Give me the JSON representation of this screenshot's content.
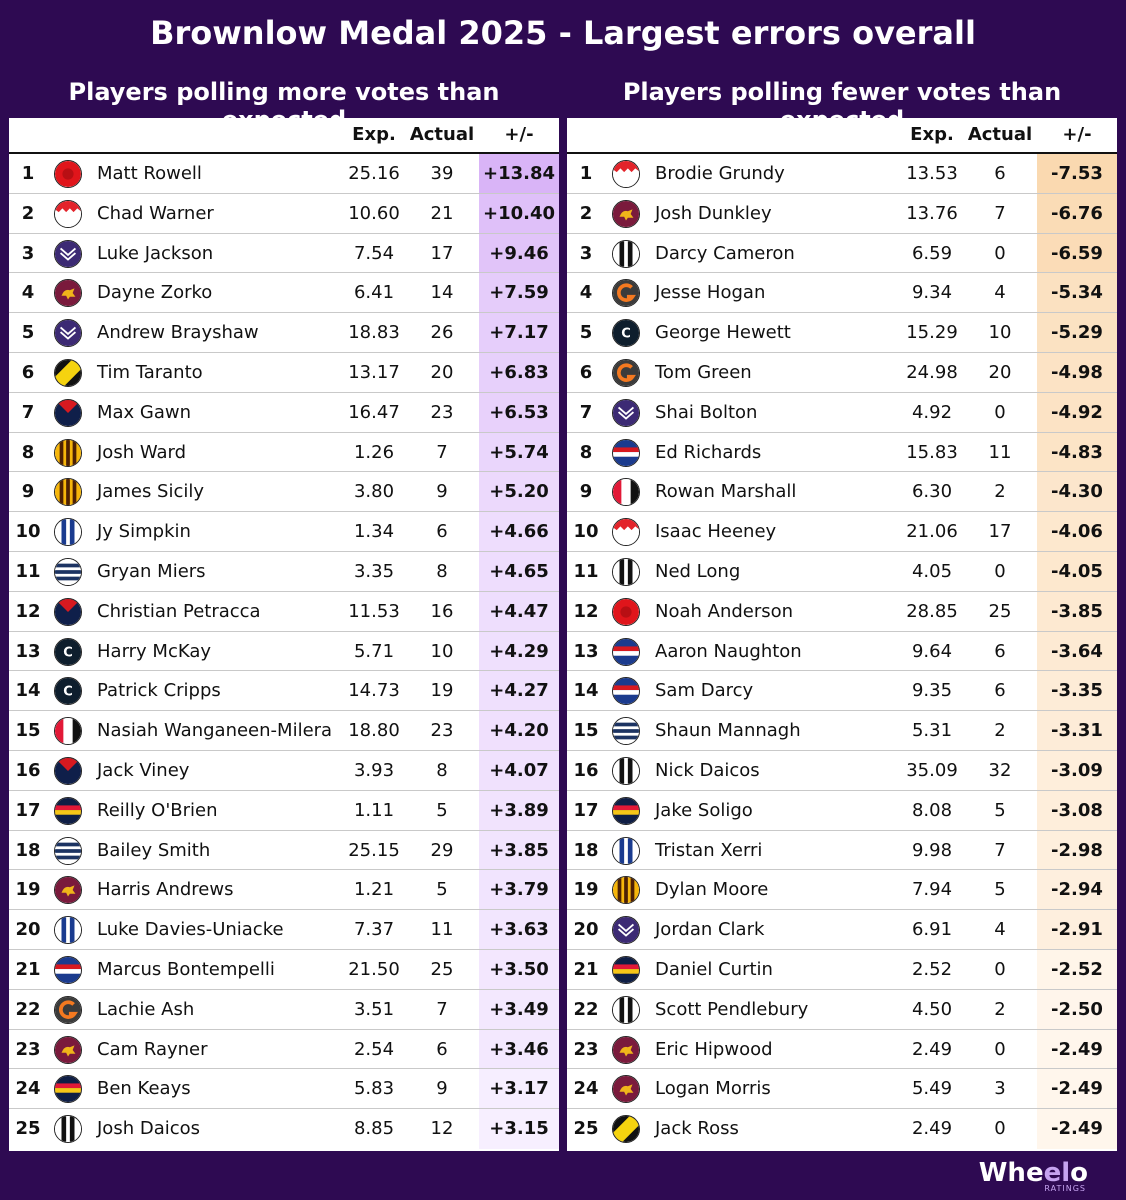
{
  "title": "Brownlow Medal 2025 - Largest errors overall",
  "left": {
    "subtitle": "Players polling more votes than expected",
    "headers": {
      "exp": "Exp.",
      "actual": "Actual",
      "diff": "+/-"
    },
    "rows": [
      {
        "rank": "1",
        "name": "Matt Rowell",
        "exp": "25.16",
        "actual": "39",
        "diff": "+13.84",
        "logo": "suns-icon"
      },
      {
        "rank": "2",
        "name": "Chad Warner",
        "exp": "10.60",
        "actual": "21",
        "diff": "+10.40",
        "logo": "swans-icon"
      },
      {
        "rank": "3",
        "name": "Luke Jackson",
        "exp": "7.54",
        "actual": "17",
        "diff": "+9.46",
        "logo": "dockers-icon"
      },
      {
        "rank": "4",
        "name": "Dayne Zorko",
        "exp": "6.41",
        "actual": "14",
        "diff": "+7.59",
        "logo": "lions-icon"
      },
      {
        "rank": "5",
        "name": "Andrew Brayshaw",
        "exp": "18.83",
        "actual": "26",
        "diff": "+7.17",
        "logo": "dockers-icon"
      },
      {
        "rank": "6",
        "name": "Tim Taranto",
        "exp": "13.17",
        "actual": "20",
        "diff": "+6.83",
        "logo": "tigers-icon"
      },
      {
        "rank": "7",
        "name": "Max Gawn",
        "exp": "16.47",
        "actual": "23",
        "diff": "+6.53",
        "logo": "demons-icon"
      },
      {
        "rank": "8",
        "name": "Josh Ward",
        "exp": "1.26",
        "actual": "7",
        "diff": "+5.74",
        "logo": "hawks-icon"
      },
      {
        "rank": "9",
        "name": "James Sicily",
        "exp": "3.80",
        "actual": "9",
        "diff": "+5.20",
        "logo": "hawks-icon"
      },
      {
        "rank": "10",
        "name": "Jy Simpkin",
        "exp": "1.34",
        "actual": "6",
        "diff": "+4.66",
        "logo": "kangaroos-icon"
      },
      {
        "rank": "11",
        "name": "Gryan Miers",
        "exp": "3.35",
        "actual": "8",
        "diff": "+4.65",
        "logo": "cats-icon"
      },
      {
        "rank": "12",
        "name": "Christian Petracca",
        "exp": "11.53",
        "actual": "16",
        "diff": "+4.47",
        "logo": "demons-icon"
      },
      {
        "rank": "13",
        "name": "Harry McKay",
        "exp": "5.71",
        "actual": "10",
        "diff": "+4.29",
        "logo": "blues-icon"
      },
      {
        "rank": "14",
        "name": "Patrick Cripps",
        "exp": "14.73",
        "actual": "19",
        "diff": "+4.27",
        "logo": "blues-icon"
      },
      {
        "rank": "15",
        "name": "Nasiah Wanganeen-Milera",
        "exp": "18.80",
        "actual": "23",
        "diff": "+4.20",
        "logo": "saints-icon"
      },
      {
        "rank": "16",
        "name": "Jack Viney",
        "exp": "3.93",
        "actual": "8",
        "diff": "+4.07",
        "logo": "demons-icon"
      },
      {
        "rank": "17",
        "name": "Reilly O'Brien",
        "exp": "1.11",
        "actual": "5",
        "diff": "+3.89",
        "logo": "crows-icon"
      },
      {
        "rank": "18",
        "name": "Bailey Smith",
        "exp": "25.15",
        "actual": "29",
        "diff": "+3.85",
        "logo": "cats-icon"
      },
      {
        "rank": "19",
        "name": "Harris Andrews",
        "exp": "1.21",
        "actual": "5",
        "diff": "+3.79",
        "logo": "lions-icon"
      },
      {
        "rank": "20",
        "name": "Luke Davies-Uniacke",
        "exp": "7.37",
        "actual": "11",
        "diff": "+3.63",
        "logo": "kangaroos-icon"
      },
      {
        "rank": "21",
        "name": "Marcus Bontempelli",
        "exp": "21.50",
        "actual": "25",
        "diff": "+3.50",
        "logo": "bulldogs-icon"
      },
      {
        "rank": "22",
        "name": "Lachie Ash",
        "exp": "3.51",
        "actual": "7",
        "diff": "+3.49",
        "logo": "giants-icon"
      },
      {
        "rank": "23",
        "name": "Cam Rayner",
        "exp": "2.54",
        "actual": "6",
        "diff": "+3.46",
        "logo": "lions-icon"
      },
      {
        "rank": "24",
        "name": "Ben Keays",
        "exp": "5.83",
        "actual": "9",
        "diff": "+3.17",
        "logo": "crows-icon"
      },
      {
        "rank": "25",
        "name": "Josh Daicos",
        "exp": "8.85",
        "actual": "12",
        "diff": "+3.15",
        "logo": "magpies-icon"
      }
    ]
  },
  "right": {
    "subtitle": "Players polling fewer votes than expected",
    "headers": {
      "exp": "Exp.",
      "actual": "Actual",
      "diff": "+/-"
    },
    "rows": [
      {
        "rank": "1",
        "name": "Brodie Grundy",
        "exp": "13.53",
        "actual": "6",
        "diff": "-7.53",
        "logo": "swans-icon"
      },
      {
        "rank": "2",
        "name": "Josh Dunkley",
        "exp": "13.76",
        "actual": "7",
        "diff": "-6.76",
        "logo": "lions-icon"
      },
      {
        "rank": "3",
        "name": "Darcy Cameron",
        "exp": "6.59",
        "actual": "0",
        "diff": "-6.59",
        "logo": "magpies-icon"
      },
      {
        "rank": "4",
        "name": "Jesse Hogan",
        "exp": "9.34",
        "actual": "4",
        "diff": "-5.34",
        "logo": "giants-icon"
      },
      {
        "rank": "5",
        "name": "George Hewett",
        "exp": "15.29",
        "actual": "10",
        "diff": "-5.29",
        "logo": "blues-icon"
      },
      {
        "rank": "6",
        "name": "Tom Green",
        "exp": "24.98",
        "actual": "20",
        "diff": "-4.98",
        "logo": "giants-icon"
      },
      {
        "rank": "7",
        "name": "Shai Bolton",
        "exp": "4.92",
        "actual": "0",
        "diff": "-4.92",
        "logo": "dockers-icon"
      },
      {
        "rank": "8",
        "name": "Ed Richards",
        "exp": "15.83",
        "actual": "11",
        "diff": "-4.83",
        "logo": "bulldogs-icon"
      },
      {
        "rank": "9",
        "name": "Rowan Marshall",
        "exp": "6.30",
        "actual": "2",
        "diff": "-4.30",
        "logo": "saints-icon"
      },
      {
        "rank": "10",
        "name": "Isaac Heeney",
        "exp": "21.06",
        "actual": "17",
        "diff": "-4.06",
        "logo": "swans-icon"
      },
      {
        "rank": "11",
        "name": "Ned Long",
        "exp": "4.05",
        "actual": "0",
        "diff": "-4.05",
        "logo": "magpies-icon"
      },
      {
        "rank": "12",
        "name": "Noah Anderson",
        "exp": "28.85",
        "actual": "25",
        "diff": "-3.85",
        "logo": "suns-icon"
      },
      {
        "rank": "13",
        "name": "Aaron Naughton",
        "exp": "9.64",
        "actual": "6",
        "diff": "-3.64",
        "logo": "bulldogs-icon"
      },
      {
        "rank": "14",
        "name": "Sam Darcy",
        "exp": "9.35",
        "actual": "6",
        "diff": "-3.35",
        "logo": "bulldogs-icon"
      },
      {
        "rank": "15",
        "name": "Shaun Mannagh",
        "exp": "5.31",
        "actual": "2",
        "diff": "-3.31",
        "logo": "cats-icon"
      },
      {
        "rank": "16",
        "name": "Nick Daicos",
        "exp": "35.09",
        "actual": "32",
        "diff": "-3.09",
        "logo": "magpies-icon"
      },
      {
        "rank": "17",
        "name": "Jake Soligo",
        "exp": "8.08",
        "actual": "5",
        "diff": "-3.08",
        "logo": "crows-icon"
      },
      {
        "rank": "18",
        "name": "Tristan Xerri",
        "exp": "9.98",
        "actual": "7",
        "diff": "-2.98",
        "logo": "kangaroos-icon"
      },
      {
        "rank": "19",
        "name": "Dylan Moore",
        "exp": "7.94",
        "actual": "5",
        "diff": "-2.94",
        "logo": "hawks-icon"
      },
      {
        "rank": "20",
        "name": "Jordan Clark",
        "exp": "6.91",
        "actual": "4",
        "diff": "-2.91",
        "logo": "dockers-icon"
      },
      {
        "rank": "21",
        "name": "Daniel Curtin",
        "exp": "2.52",
        "actual": "0",
        "diff": "-2.52",
        "logo": "crows-icon"
      },
      {
        "rank": "22",
        "name": "Scott Pendlebury",
        "exp": "4.50",
        "actual": "2",
        "diff": "-2.50",
        "logo": "magpies-icon"
      },
      {
        "rank": "23",
        "name": "Eric Hipwood",
        "exp": "2.49",
        "actual": "0",
        "diff": "-2.49",
        "logo": "lions-icon"
      },
      {
        "rank": "24",
        "name": "Logan Morris",
        "exp": "5.49",
        "actual": "3",
        "diff": "-2.49",
        "logo": "lions-icon"
      },
      {
        "rank": "25",
        "name": "Jack Ross",
        "exp": "2.49",
        "actual": "0",
        "diff": "-2.49",
        "logo": "tigers-icon"
      }
    ]
  },
  "brand": {
    "name_a": "Whe",
    "name_o": "el",
    "name_b": "o",
    "sub": "RATINGS"
  },
  "colors": {
    "background": "#2e0a52",
    "positive_strong": "#d9b4f7",
    "positive_weak": "#f7efff",
    "negative_strong": "#fad9b0",
    "negative_weak": "#fff6ec"
  }
}
